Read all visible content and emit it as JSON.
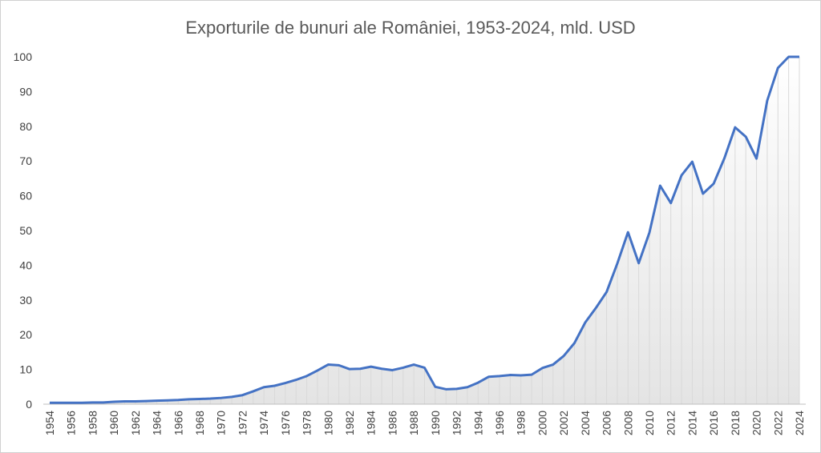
{
  "chart_data": {
    "type": "line",
    "title": "Exporturile de bunuri ale României, 1953-2024, mld. USD",
    "categories": [
      "1954",
      null,
      "1956",
      null,
      "1958",
      null,
      "1960",
      null,
      "1962",
      null,
      "1964",
      null,
      "1966",
      null,
      "1968",
      null,
      "1970",
      null,
      "1972",
      null,
      "1974",
      null,
      "1976",
      null,
      "1978",
      null,
      "1980",
      null,
      "1982",
      null,
      "1984",
      null,
      "1986",
      null,
      "1988",
      null,
      "1990",
      null,
      "1992",
      null,
      "1994",
      null,
      "1996",
      null,
      "1998",
      null,
      "2000",
      null,
      "2002",
      null,
      "2004",
      null,
      "2006",
      null,
      "2008",
      null,
      "2010",
      null,
      "2012",
      null,
      "2014",
      null,
      "2016",
      null,
      "2018",
      null,
      "2020",
      null,
      "2022",
      null,
      "2024"
    ],
    "values": [
      0.4,
      0.4,
      0.4,
      0.4,
      0.5,
      0.5,
      0.7,
      0.8,
      0.8,
      0.9,
      1.0,
      1.1,
      1.2,
      1.4,
      1.5,
      1.6,
      1.8,
      2.1,
      2.6,
      3.7,
      4.9,
      5.3,
      6.1,
      7.0,
      8.1,
      9.7,
      11.4,
      11.2,
      10.1,
      10.2,
      10.8,
      10.2,
      9.8,
      10.5,
      11.4,
      10.5,
      5.0,
      4.3,
      4.4,
      4.9,
      6.2,
      7.9,
      8.1,
      8.4,
      8.3,
      8.5,
      10.4,
      11.4,
      13.9,
      17.6,
      23.5,
      27.7,
      32.3,
      40.5,
      49.5,
      40.6,
      49.4,
      62.9,
      57.9,
      65.9,
      69.8,
      60.6,
      63.5,
      70.8,
      79.7,
      77.0,
      70.7,
      87.4,
      96.8,
      100,
      100
    ],
    "color": "#4472c4",
    "ylim": [
      0,
      100
    ],
    "yticks": [
      0,
      10,
      20,
      30,
      40,
      50,
      60,
      70,
      80,
      90,
      100
    ]
  }
}
